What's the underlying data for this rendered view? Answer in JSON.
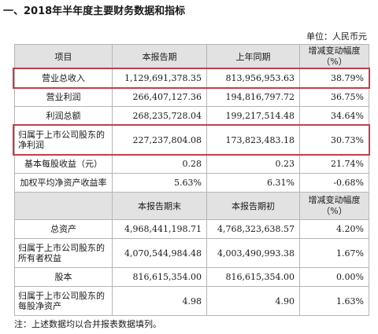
{
  "title": "一、2018年半年度主要财务数据和指标",
  "unit": "单位：人民币元",
  "table1": {
    "headers": [
      "项目",
      "本报告期",
      "上年同期",
      "增减变动幅度",
      "（%）"
    ],
    "rows": [
      {
        "label": "营业总收入",
        "current": "1,129,691,378.35",
        "prior": "813,956,953.63",
        "change": "38.79%"
      },
      {
        "label": "营业利润",
        "current": "266,407,127.36",
        "prior": "194,816,797.72",
        "change": "36.75%"
      },
      {
        "label": "利润总额",
        "current": "268,235,728.04",
        "prior": "199,217,514.48",
        "change": "34.64%"
      },
      {
        "label_line1": "归属于上市公司股东的",
        "label_line2": "净利润",
        "current": "227,237,804.08",
        "prior": "173,823,483.18",
        "change": "30.73%"
      },
      {
        "label": "基本每股收益（元）",
        "current": "0.28",
        "prior": "0.23",
        "change": "21.74%"
      },
      {
        "label": "加权平均净资产收益率",
        "current": "5.63%",
        "prior": "6.31%",
        "change": "-0.68%"
      }
    ]
  },
  "table2": {
    "headers": [
      "本报告期末",
      "本报告期初",
      "增减变动幅度",
      "（%）"
    ],
    "rows": [
      {
        "label": "总资产",
        "end": "4,968,441,198.71",
        "begin": "4,768,323,638.57",
        "change": "4.20%"
      },
      {
        "label_line1": "归属于上市公司股东的",
        "label_line2": "所有者权益",
        "end": "4,070,544,984.48",
        "begin": "4,003,490,993.38",
        "change": "1.67%"
      },
      {
        "label": "股本",
        "end": "816,615,354.00",
        "begin": "816,615,354.00",
        "change": "0.00%"
      },
      {
        "label_line1": "归属于上市公司股东的",
        "label_line2": "每股净资产",
        "end": "4.98",
        "begin": "4.90",
        "change": "1.63%"
      }
    ]
  },
  "note": "注：上述数据均以合并报表数据填列。",
  "highlight_color": "#c0404a"
}
